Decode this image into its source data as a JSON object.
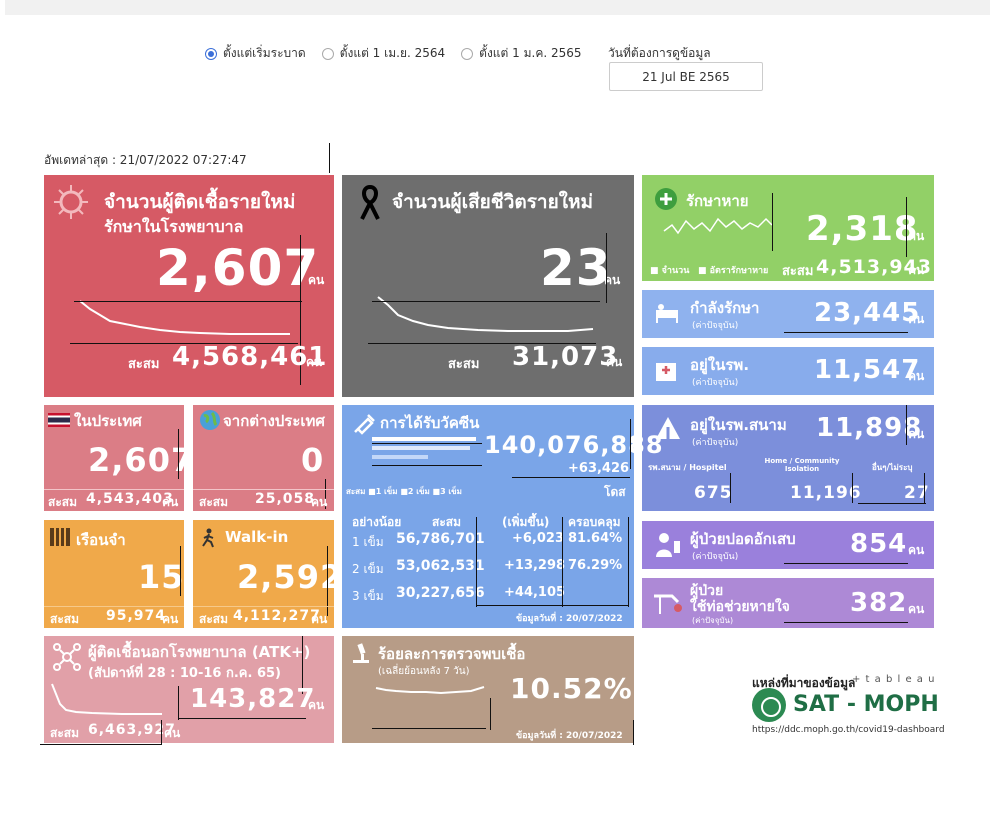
{
  "filters": {
    "options": [
      "ตั้งแต่เริ่มระบาด",
      "ตั้งแต่ 1 เม.ย. 2564",
      "ตั้งแต่ 1 ม.ค. 2565"
    ],
    "date_label": "วันที่ต้องการดูข้อมูล",
    "date_value": "21 Jul BE 2565"
  },
  "updated": "อัพเดทล่าสุด : 21/07/2022 07:27:47",
  "unit": "คน",
  "cum_label": "สะสม",
  "new_cases": {
    "title": "จำนวนผู้ติดเชื้อรายใหม่",
    "subtitle": "รักษาในโรงพยาบาล",
    "value": "2,607",
    "cum": "4,568,461"
  },
  "new_deaths": {
    "title": "จำนวนผู้เสียชีวิตรายใหม่",
    "value": "23",
    "cum": "31,073"
  },
  "recovered": {
    "title": "รักษาหาย",
    "value": "2,318",
    "legend_count": "จำนวน",
    "legend_rate": "อัตรารักษาหาย",
    "cum": "4,513,943"
  },
  "treating": {
    "title": "กำลังรักษา",
    "note": "(ค่าปัจจุบัน)",
    "value": "23,445"
  },
  "in_hospital": {
    "title": "อยู่ในรพ.",
    "note": "(ค่าปัจจุบัน)",
    "value": "11,547"
  },
  "field_hospital": {
    "title": "อยู่ในรพ.สนาม",
    "note": "(ค่าปัจจุบัน)",
    "value": "11,898",
    "cols": [
      {
        "label": "รพ.สนาม / Hospitel",
        "value": "675"
      },
      {
        "label": "Home / Community Isolation",
        "value": "11,196"
      },
      {
        "label": "อื่นๆ/ไม่ระบุ",
        "value": "27"
      }
    ]
  },
  "pneumonia": {
    "title": "ผู้ป่วยปอดอักเสบ",
    "note": "(ค่าปัจจุบัน)",
    "value": "854"
  },
  "ventilator": {
    "title1": "ผู้ป่วย",
    "title2": "ใช้ท่อช่วยหายใจ",
    "note": "(ค่าปัจจุบัน)",
    "value": "382"
  },
  "domestic": {
    "title": "ในประเทศ",
    "value": "2,607",
    "cum": "4,543,403"
  },
  "abroad": {
    "title": "จากต่างประเทศ",
    "value": "0",
    "cum": "25,058"
  },
  "prison": {
    "title": "เรือนจำ",
    "value": "15",
    "cum": "95,974"
  },
  "walkin": {
    "title": "Walk-in",
    "value": "2,592",
    "cum": "4,112,277"
  },
  "vaccine": {
    "title": "การได้รับวัคซีน",
    "total": "140,076,888",
    "delta": "+63,426",
    "dose_unit": "โดส",
    "legend": [
      "สะสม",
      "1 เข็ม",
      "2 เข็ม",
      "3 เข็ม"
    ],
    "headers": [
      "อย่างน้อย",
      "สะสม",
      "(เพิ่มขึ้น)",
      "ครอบคลุม"
    ],
    "rows": [
      {
        "dose": "1 เข็ม",
        "cum": "56,786,701",
        "inc": "+6,023",
        "cov": "81.64%"
      },
      {
        "dose": "2 เข็ม",
        "cum": "53,062,531",
        "inc": "+13,298",
        "cov": "76.29%"
      },
      {
        "dose": "3 เข็ม",
        "cum": "30,227,656",
        "inc": "+44,105",
        "cov": ""
      }
    ],
    "data_date": "ข้อมูลวันที่ : 20/07/2022"
  },
  "atk": {
    "title": "ผู้ติดเชื้อนอกโรงพยาบาล (ATK+)",
    "week": "(สัปดาห์ที่  28   :   10-16 ก.ค. 65)",
    "value": "143,827",
    "cum": "6,463,927"
  },
  "positivity": {
    "title": "ร้อยละการตรวจพบเชื้อ",
    "note": "(เฉลี่ยย้อนหลัง 7 วัน)",
    "value": "10.52%",
    "data_date": "ข้อมูลวันที่ : 20/07/2022"
  },
  "source": {
    "title": "แหล่งที่มาของข้อมูล",
    "tableau": "+ t a b l e a u",
    "brand": "SAT - MOPH",
    "url": "https://ddc.moph.go.th/covid19-dashboard"
  }
}
